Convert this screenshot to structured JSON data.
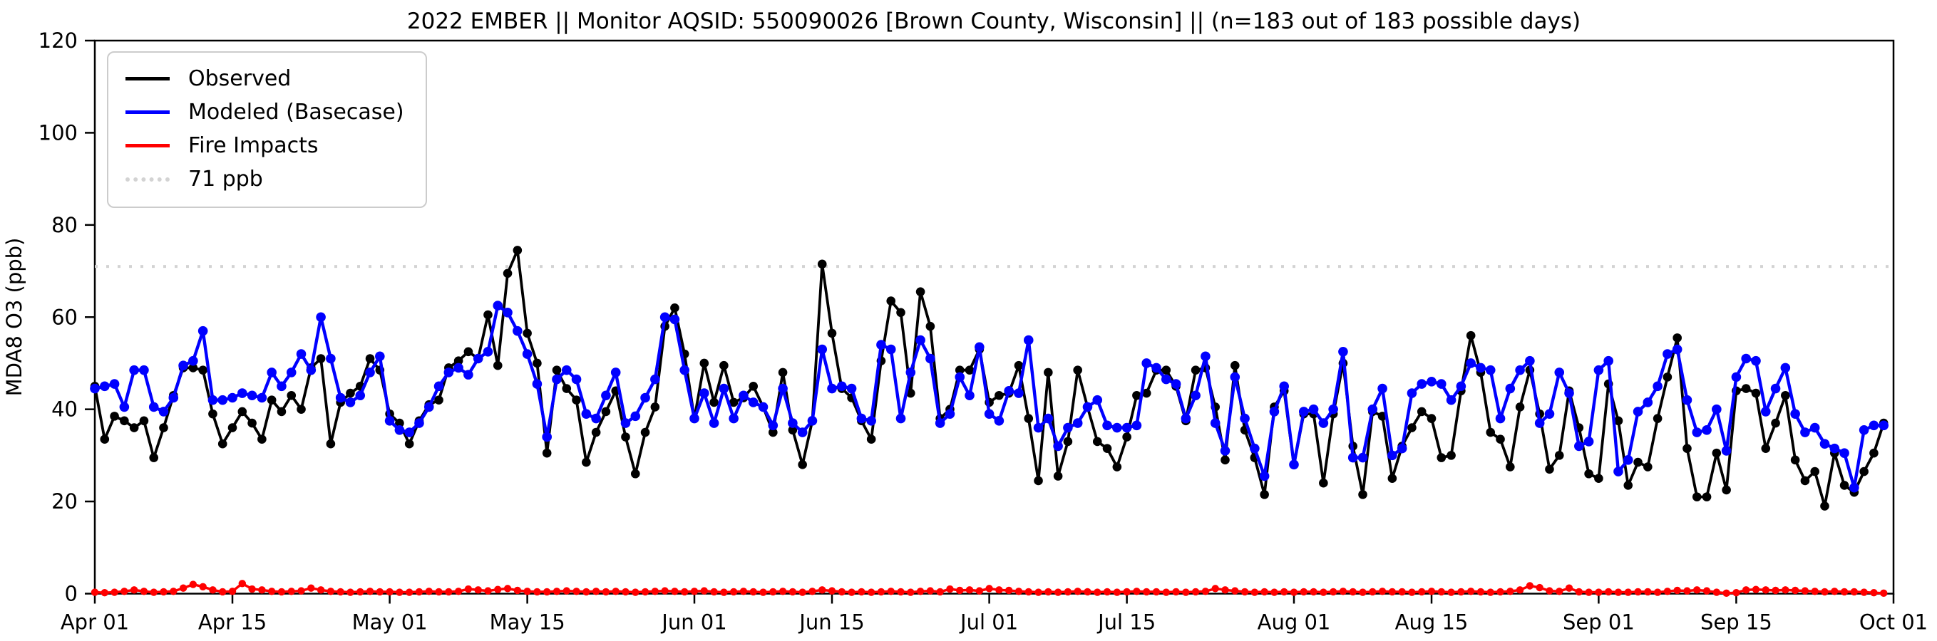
{
  "title": "2022 EMBER || Monitor AQSID: 550090026 [Brown County, Wisconsin] || (n=183 out of 183 possible days)",
  "y_axis": {
    "label": "MDA8 O3 (ppb)",
    "ticks": [
      0,
      20,
      40,
      60,
      80,
      100,
      120
    ],
    "min": 0,
    "max": 120
  },
  "x_axis": {
    "tick_labels": [
      "Apr 01",
      "Apr 15",
      "May 01",
      "May 15",
      "Jun 01",
      "Jun 15",
      "Jul 01",
      "Jul 15",
      "Aug 01",
      "Aug 15",
      "Sep 01",
      "Sep 15",
      "Oct 01"
    ],
    "tick_days": [
      0,
      14,
      30,
      44,
      61,
      75,
      91,
      105,
      122,
      136,
      153,
      167,
      183
    ]
  },
  "legend": {
    "items": [
      {
        "label": "Observed",
        "color": "#000000",
        "style": "solid"
      },
      {
        "label": "Modeled (Basecase)",
        "color": "#0000ff",
        "style": "solid"
      },
      {
        "label": "Fire Impacts",
        "color": "#ff0000",
        "style": "solid"
      },
      {
        "label": "71 ppb",
        "color": "#d3d3d3",
        "style": "dotted"
      }
    ]
  },
  "chart_data": {
    "type": "line",
    "title": "2022 EMBER || Monitor AQSID: 550090026 [Brown County, Wisconsin] || (n=183 out of 183 possible days)",
    "xlabel": "",
    "ylabel": "MDA8 O3 (ppb)",
    "ylim": [
      0,
      120
    ],
    "x_start": "2022-04-01",
    "x_end": "2022-09-30",
    "n_days": 183,
    "grid": false,
    "legend_position": "upper left",
    "threshold": {
      "label": "71 ppb",
      "value": 71,
      "color": "#d3d3d3",
      "linestyle": "dotted"
    },
    "series": [
      {
        "name": "Observed",
        "color": "#000000",
        "marker": "circle",
        "values": [
          45,
          33.5,
          38.5,
          37.5,
          36,
          37.5,
          29.5,
          36,
          43,
          49,
          49,
          48.5,
          39,
          32.5,
          36,
          39.5,
          37,
          33.5,
          42,
          39.5,
          43,
          40,
          49,
          51,
          32.5,
          41.5,
          43.5,
          45,
          51,
          48.5,
          39,
          37,
          32.5,
          37.5,
          41,
          42,
          49,
          50.5,
          52.5,
          51,
          60.5,
          49.5,
          69.5,
          74.5,
          56.5,
          50,
          30.5,
          48.5,
          44.5,
          42,
          28.5,
          35,
          39.5,
          44,
          34,
          26,
          35,
          40.5,
          58,
          62,
          52,
          38,
          50,
          41.5,
          49.5,
          41.5,
          42.5,
          45,
          40.5,
          35,
          48,
          35.5,
          28,
          37.5,
          71.5,
          56.5,
          44.5,
          42.5,
          37.5,
          33.5,
          50.5,
          63.5,
          61,
          43.5,
          65.5,
          58,
          38,
          40,
          48.5,
          48.5,
          53,
          41.5,
          43,
          43.5,
          49.5,
          38,
          24.5,
          48,
          25.5,
          33,
          48.5,
          40.5,
          33,
          31.5,
          27.5,
          34,
          43,
          43.5,
          48.5,
          48.5,
          45,
          37.5,
          48.5,
          49,
          40.5,
          29,
          49.5,
          35.5,
          29.5,
          21.5,
          40.5,
          44,
          28,
          39,
          39,
          24,
          39,
          50,
          32,
          21.5,
          39.5,
          38.5,
          25,
          32,
          36,
          39.5,
          38,
          29.5,
          30,
          44,
          56,
          48,
          35,
          33.5,
          27.5,
          40.5,
          48.5,
          39,
          27,
          30,
          44,
          36,
          26,
          25,
          45.5,
          37.5,
          23.5,
          28.5,
          27.5,
          38,
          47,
          55.5,
          31.5,
          21,
          21,
          30.5,
          22.5,
          44,
          44.5,
          43.5,
          31.5,
          37,
          43,
          29,
          24.5,
          26.5,
          19,
          30.5,
          23.5,
          22,
          26.5,
          30.5,
          37
        ]
      },
      {
        "name": "Modeled (Basecase)",
        "color": "#0000ff",
        "marker": "circle",
        "values": [
          44.5,
          45,
          45.5,
          40.5,
          48.5,
          48.5,
          40.5,
          39.5,
          42.5,
          49.5,
          50.5,
          57,
          42,
          42,
          42.5,
          43.5,
          43,
          42.5,
          48,
          45,
          48,
          52,
          48.5,
          60,
          51,
          42.5,
          41.5,
          43,
          48,
          51.5,
          37.5,
          35.5,
          35,
          37,
          40.5,
          45,
          48,
          49,
          47.5,
          51,
          52.5,
          62.5,
          61,
          57,
          52,
          45.5,
          34,
          46.5,
          48.5,
          46.5,
          39,
          38,
          43,
          48,
          37,
          38.5,
          42.5,
          46.5,
          60,
          59.5,
          48.5,
          38,
          43.5,
          37,
          44.5,
          38,
          43,
          41.5,
          40.5,
          36.5,
          44.5,
          37,
          35,
          37.5,
          53,
          44.5,
          45,
          44.5,
          38,
          37.5,
          54,
          53,
          38,
          48,
          55,
          51,
          37,
          39,
          47,
          43,
          53.5,
          39,
          37.5,
          44,
          43.5,
          55,
          36,
          38,
          32,
          36,
          37,
          40.5,
          42,
          36.5,
          36,
          36,
          36.5,
          50,
          49,
          46.5,
          45.5,
          38,
          43,
          51.5,
          37,
          31,
          47,
          38,
          31.5,
          25.5,
          39.5,
          45,
          28,
          39.5,
          40,
          37,
          40,
          52.5,
          29.5,
          29.5,
          40,
          44.5,
          30,
          31.5,
          43.5,
          45.5,
          46,
          45.5,
          42,
          45,
          50,
          49,
          48.5,
          38,
          44.5,
          48.5,
          50.5,
          37,
          39,
          48,
          43.5,
          32,
          33,
          48.5,
          50.5,
          26.5,
          29,
          39.5,
          41.5,
          45,
          52,
          53,
          42,
          35,
          35.5,
          40,
          31,
          47,
          51,
          50.5,
          39.5,
          44.5,
          49,
          39,
          35,
          36,
          32.5,
          31.5,
          30.5,
          23,
          35.5,
          36.5,
          36.5
        ]
      },
      {
        "name": "Fire Impacts",
        "color": "#ff0000",
        "marker": "circle",
        "values": [
          0.3,
          0.2,
          0.3,
          0.5,
          0.8,
          0.5,
          0.3,
          0.4,
          0.5,
          1.2,
          2.0,
          1.5,
          0.8,
          0.4,
          0.5,
          2.2,
          1.0,
          0.8,
          0.5,
          0.4,
          0.5,
          0.6,
          1.2,
          0.8,
          0.5,
          0.4,
          0.3,
          0.4,
          0.5,
          0.4,
          0.4,
          0.3,
          0.3,
          0.4,
          0.5,
          0.4,
          0.4,
          0.5,
          1.0,
          0.8,
          0.6,
          0.9,
          1.1,
          0.7,
          0.5,
          0.4,
          0.4,
          0.5,
          0.6,
          0.5,
          0.4,
          0.5,
          0.4,
          0.5,
          0.4,
          0.3,
          0.4,
          0.5,
          0.6,
          0.5,
          0.4,
          0.5,
          0.6,
          0.4,
          0.3,
          0.4,
          0.5,
          0.4,
          0.3,
          0.4,
          0.5,
          0.4,
          0.3,
          0.5,
          0.8,
          0.6,
          0.4,
          0.3,
          0.4,
          0.3,
          0.4,
          0.5,
          0.4,
          0.3,
          0.5,
          0.6,
          0.4,
          1.0,
          0.7,
          0.8,
          0.6,
          1.1,
          0.8,
          0.7,
          0.5,
          0.4,
          0.3,
          0.4,
          0.3,
          0.4,
          0.5,
          0.4,
          0.3,
          0.4,
          0.3,
          0.4,
          0.5,
          0.4,
          0.4,
          0.3,
          0.4,
          0.3,
          0.4,
          0.5,
          1.1,
          0.8,
          0.6,
          0.4,
          0.3,
          0.4,
          0.3,
          0.4,
          0.3,
          0.4,
          0.4,
          0.3,
          0.4,
          0.5,
          0.4,
          0.3,
          0.4,
          0.5,
          0.4,
          0.4,
          0.3,
          0.4,
          0.5,
          0.4,
          0.3,
          0.4,
          0.5,
          0.4,
          0.3,
          0.4,
          0.5,
          0.8,
          1.7,
          1.3,
          0.6,
          0.5,
          1.2,
          0.4,
          0.3,
          0.3,
          0.4,
          0.3,
          0.3,
          0.4,
          0.4,
          0.3,
          0.5,
          0.7,
          0.6,
          0.8,
          0.6,
          0.3,
          0.1,
          0.2,
          0.8,
          0.9,
          0.8,
          0.7,
          0.8,
          0.7,
          0.6,
          0.5,
          0.4,
          0.5,
          0.4,
          0.4,
          0.3,
          0.2,
          0.1
        ]
      }
    ]
  }
}
